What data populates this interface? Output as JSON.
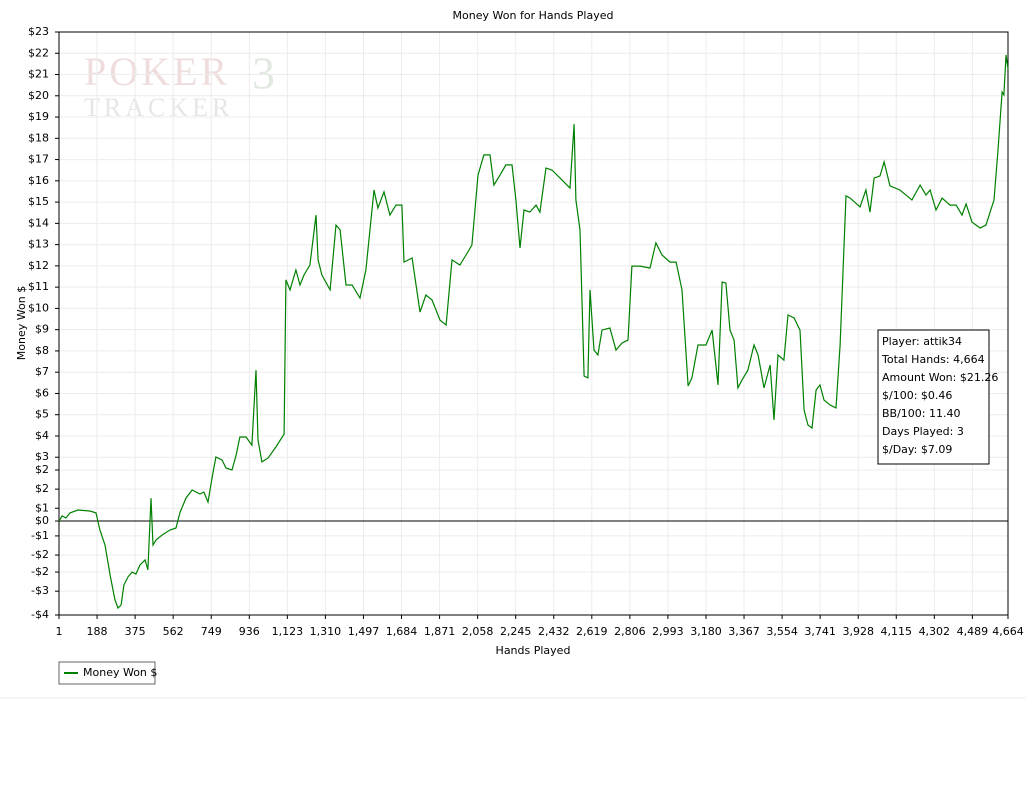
{
  "chart_data": {
    "type": "line",
    "title": "Money Won for Hands Played",
    "xlabel": "Hands Played",
    "ylabel": "Money Won $",
    "watermark": [
      "POKER",
      "3",
      "TRACKER"
    ],
    "annotations": [
      "Player: attik34",
      "Total Hands: 4,664",
      "Amount Won: $21.26",
      "$/100: $0.46",
      "BB/100: 11.40",
      "Days Played: 3",
      "$/Day: $7.09"
    ],
    "grid": true,
    "legend": "bottom-left",
    "xlim": [
      1,
      4664
    ],
    "ylim": [
      -4.42,
      23
    ],
    "xticks": [
      1,
      188,
      375,
      562,
      749,
      936,
      {
        "value": 1123,
        "label": "1,123"
      },
      {
        "value": 1310,
        "label": "1,310"
      },
      {
        "value": 1497,
        "label": "1,497"
      },
      {
        "value": 1684,
        "label": "1,684"
      },
      {
        "value": 1871,
        "label": "1,871"
      },
      {
        "value": 2058,
        "label": "2,058"
      },
      {
        "value": 2245,
        "label": "2,245"
      },
      {
        "value": 2432,
        "label": "2,432"
      },
      {
        "value": 2619,
        "label": "2,619"
      },
      {
        "value": 2806,
        "label": "2,806"
      },
      {
        "value": 2993,
        "label": "2,993"
      },
      {
        "value": 3180,
        "label": "3,180"
      },
      {
        "value": 3367,
        "label": "3,367"
      },
      {
        "value": 3554,
        "label": "3,554"
      },
      {
        "value": 3741,
        "label": "3,741"
      },
      {
        "value": 3928,
        "label": "3,928"
      },
      {
        "value": 4115,
        "label": "4,115"
      },
      {
        "value": 4302,
        "label": "4,302"
      },
      {
        "value": 4489,
        "label": "4,489"
      },
      {
        "value": 4664,
        "label": "4,664"
      }
    ],
    "yticks": [
      {
        "value": 23,
        "label": "$23"
      },
      {
        "value": 22,
        "label": "$22"
      },
      {
        "value": 21,
        "label": "$21"
      },
      {
        "value": 20,
        "label": "$20"
      },
      {
        "value": 19,
        "label": "$19"
      },
      {
        "value": 18,
        "label": "$18"
      },
      {
        "value": 17,
        "label": "$17"
      },
      {
        "value": 16,
        "label": "$16"
      },
      {
        "value": 15,
        "label": "$15"
      },
      {
        "value": 14,
        "label": "$14"
      },
      {
        "value": 13,
        "label": "$13"
      },
      {
        "value": 12,
        "label": "$12"
      },
      {
        "value": 11,
        "label": "$11"
      },
      {
        "value": 10,
        "label": "$10"
      },
      {
        "value": 9,
        "label": "$9"
      },
      {
        "value": 8,
        "label": "$8"
      },
      {
        "value": 7,
        "label": "$7"
      },
      {
        "value": 6,
        "label": "$6"
      },
      {
        "value": 5,
        "label": "$5"
      },
      {
        "value": 4,
        "label": "$4"
      },
      {
        "value": 3,
        "label": "$3"
      },
      {
        "value": 2.4,
        "label": "$2"
      },
      {
        "value": 1.5,
        "label": "$2"
      },
      {
        "value": 0.6,
        "label": "$1"
      },
      {
        "value": 0,
        "label": "$0"
      },
      {
        "value": -0.7,
        "label": "-$1"
      },
      {
        "value": -1.6,
        "label": "-$2"
      },
      {
        "value": -2.4,
        "label": "-$2"
      },
      {
        "value": -3.3,
        "label": "-$3"
      },
      {
        "value": -4.42,
        "label": "-$4"
      }
    ],
    "x": [
      1,
      16,
      35,
      55,
      94,
      153,
      183,
      202,
      227,
      252,
      276,
      291,
      306,
      320,
      340,
      360,
      379,
      399,
      424,
      438,
      453,
      463,
      478,
      507,
      546,
      576,
      596,
      625,
      655,
      694,
      713,
      733,
      753,
      772,
      802,
      822,
      851,
      871,
      890,
      920,
      949,
      969,
      979,
      998,
      1028,
      1067,
      1107,
      1116,
      1136,
      1165,
      1185,
      1205,
      1234,
      1264,
      1274,
      1293,
      1333,
      1362,
      1382,
      1411,
      1441,
      1480,
      1509,
      1549,
      1568,
      1598,
      1627,
      1657,
      1686,
      1696,
      1736,
      1775,
      1804,
      1834,
      1873,
      1903,
      1932,
      1971,
      2001,
      2030,
      2060,
      2089,
      2119,
      2138,
      2168,
      2197,
      2227,
      2246,
      2266,
      2286,
      2315,
      2345,
      2364,
      2394,
      2423,
      2463,
      2512,
      2532,
      2541,
      2561,
      2581,
      2600,
      2610,
      2630,
      2649,
      2669,
      2708,
      2738,
      2767,
      2797,
      2816,
      2856,
      2905,
      2934,
      2964,
      3003,
      3033,
      3062,
      3092,
      3111,
      3141,
      3180,
      3210,
      3239,
      3259,
      3278,
      3298,
      3318,
      3337,
      3357,
      3386,
      3416,
      3436,
      3465,
      3495,
      3514,
      3534,
      3563,
      3583,
      3613,
      3642,
      3662,
      3681,
      3701,
      3721,
      3740,
      3760,
      3789,
      3819,
      3839,
      3868,
      3888,
      3937,
      3966,
      3986,
      4006,
      4035,
      4055,
      4084,
      4133,
      4163,
      4192,
      4232,
      4261,
      4281,
      4310,
      4340,
      4379,
      4409,
      4438,
      4458,
      4487,
      4527,
      4556,
      4576,
      4595,
      4615,
      4635,
      4644,
      4654,
      4664
    ],
    "series": [
      {
        "name": "Money Won $",
        "color": "#008000",
        "values": [
          0,
          0.24,
          0.14,
          0.38,
          0.52,
          0.47,
          0.38,
          -0.42,
          -1.13,
          -2.54,
          -3.72,
          -4.09,
          -3.95,
          -3.01,
          -2.63,
          -2.4,
          -2.49,
          -2.07,
          -1.83,
          -2.3,
          1.08,
          -1.13,
          -0.89,
          -0.66,
          -0.42,
          -0.33,
          0.42,
          1.08,
          1.46,
          1.27,
          1.36,
          0.89,
          2.02,
          3.01,
          2.87,
          2.49,
          2.4,
          3.1,
          3.95,
          3.95,
          3.57,
          7.1,
          3.81,
          2.78,
          2.96,
          3.48,
          4.09,
          11.34,
          10.87,
          11.81,
          11.1,
          11.57,
          12.04,
          14.39,
          12.28,
          11.57,
          10.87,
          13.92,
          13.69,
          11.1,
          11.1,
          10.49,
          11.81,
          15.57,
          14.72,
          15.48,
          14.39,
          14.86,
          14.86,
          12.18,
          12.37,
          9.83,
          10.63,
          10.4,
          9.45,
          9.22,
          12.28,
          12.04,
          12.51,
          12.98,
          16.27,
          17.22,
          17.22,
          15.8,
          16.27,
          16.75,
          16.75,
          15.1,
          12.84,
          14.63,
          14.53,
          14.86,
          14.53,
          16.6,
          16.51,
          16.13,
          15.66,
          18.67,
          15.1,
          13.69,
          6.82,
          6.73,
          10.87,
          8.04,
          7.81,
          8.98,
          9.08,
          8.04,
          8.37,
          8.51,
          11.99,
          11.99,
          11.9,
          13.08,
          12.51,
          12.18,
          12.18,
          10.87,
          6.35,
          6.73,
          8.28,
          8.28,
          8.98,
          6.4,
          11.24,
          11.19,
          8.98,
          8.51,
          6.26,
          6.63,
          7.1,
          8.28,
          7.81,
          6.26,
          7.34,
          4.75,
          7.81,
          7.57,
          9.69,
          9.55,
          8.98,
          5.22,
          4.52,
          4.37,
          6.16,
          6.4,
          5.69,
          5.46,
          5.32,
          8.28,
          15.29,
          15.19,
          14.77,
          15.57,
          14.53,
          16.13,
          16.23,
          16.89,
          15.76,
          15.57,
          15.33,
          15.1,
          15.8,
          15.33,
          15.57,
          14.63,
          15.19,
          14.86,
          14.86,
          14.39,
          14.91,
          14.06,
          13.78,
          13.92,
          14.53,
          15.1,
          17.45,
          20.18,
          20.04,
          21.92,
          21.26
        ]
      }
    ]
  }
}
